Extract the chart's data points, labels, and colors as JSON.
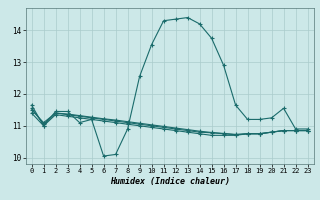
{
  "xlabel": "Humidex (Indice chaleur)",
  "bg_color": "#cce8e8",
  "grid_color": "#aacccc",
  "line_color": "#1a6b6b",
  "xlim": [
    -0.5,
    23.5
  ],
  "ylim": [
    9.8,
    14.7
  ],
  "yticks": [
    10,
    11,
    12,
    13,
    14
  ],
  "xticks": [
    0,
    1,
    2,
    3,
    4,
    5,
    6,
    7,
    8,
    9,
    10,
    11,
    12,
    13,
    14,
    15,
    16,
    17,
    18,
    19,
    20,
    21,
    22,
    23
  ],
  "series": [
    [
      11.65,
      11.0,
      11.45,
      11.45,
      11.1,
      11.2,
      10.05,
      10.1,
      10.9,
      12.55,
      13.55,
      14.3,
      14.35,
      14.4,
      14.2,
      13.75,
      12.9,
      11.65,
      11.2,
      11.2,
      11.25,
      11.55,
      10.9,
      10.9
    ],
    [
      11.4,
      11.0,
      11.35,
      11.3,
      11.25,
      11.2,
      11.15,
      11.1,
      11.05,
      11.0,
      10.95,
      10.9,
      10.85,
      10.8,
      10.75,
      10.7,
      10.7,
      10.7,
      10.75,
      10.75,
      10.8,
      10.85,
      10.85,
      10.85
    ],
    [
      11.5,
      11.1,
      11.4,
      11.35,
      11.3,
      11.25,
      11.2,
      11.15,
      11.1,
      11.05,
      11.0,
      10.95,
      10.9,
      10.85,
      10.8,
      10.78,
      10.75,
      10.72,
      10.75,
      10.75,
      10.8,
      10.85,
      10.85,
      10.85
    ],
    [
      11.55,
      11.05,
      11.4,
      11.37,
      11.32,
      11.27,
      11.22,
      11.18,
      11.13,
      11.08,
      11.03,
      10.98,
      10.93,
      10.88,
      10.83,
      10.79,
      10.76,
      10.73,
      10.75,
      10.75,
      10.8,
      10.85,
      10.85,
      10.85
    ]
  ]
}
